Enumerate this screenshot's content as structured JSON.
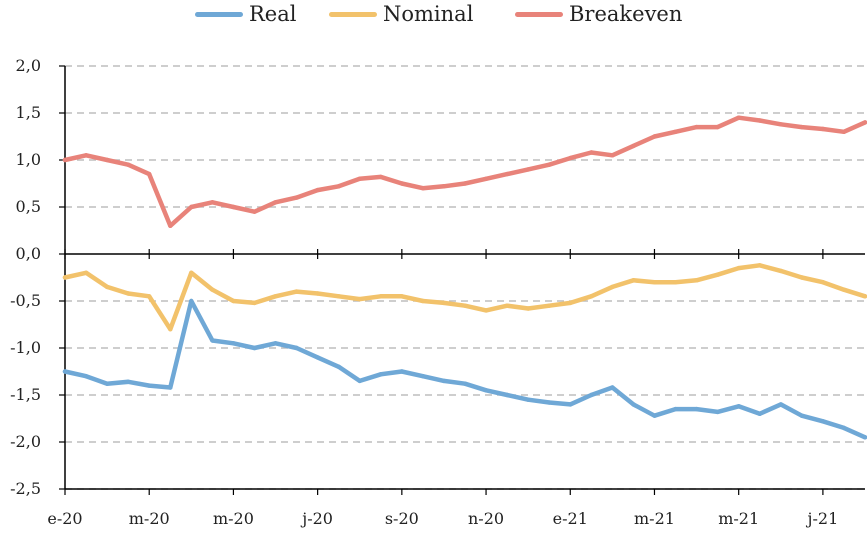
{
  "chart_data": {
    "type": "line",
    "title": "",
    "xlabel": "",
    "ylabel": "",
    "ylim": [
      -2.5,
      2.0
    ],
    "y_ticks": [
      "2,0",
      "1,5",
      "1,0",
      "0,5",
      "0,0",
      "-0,5",
      "-1,0",
      "-1,5",
      "-2,0",
      "-2,5"
    ],
    "x_ticks": [
      "e-20",
      "m-20",
      "m-20",
      "j-20",
      "s-20",
      "n-20",
      "e-21",
      "m-21",
      "m-21",
      "j-21"
    ],
    "x_range": [
      0,
      19
    ],
    "grid": "horizontal dashed",
    "legend_position": "top",
    "series": [
      {
        "name": "Real",
        "color": "#6fa8d6",
        "x": [
          0,
          0.5,
          1,
          1.5,
          2,
          2.5,
          3,
          3.5,
          4,
          4.5,
          5,
          5.5,
          6,
          6.5,
          7,
          7.5,
          8,
          8.5,
          9,
          9.5,
          10,
          10.5,
          11,
          11.5,
          12,
          12.5,
          13,
          13.5,
          14,
          14.5,
          15,
          15.5,
          16,
          16.5,
          17,
          17.5,
          18,
          18.5,
          19
        ],
        "values": [
          -1.25,
          -1.3,
          -1.38,
          -1.36,
          -1.4,
          -1.42,
          -0.5,
          -0.92,
          -0.95,
          -1.0,
          -0.95,
          -1.0,
          -1.1,
          -1.2,
          -1.35,
          -1.28,
          -1.25,
          -1.3,
          -1.35,
          -1.38,
          -1.45,
          -1.5,
          -1.55,
          -1.58,
          -1.6,
          -1.5,
          -1.42,
          -1.6,
          -1.72,
          -1.65,
          -1.65,
          -1.68,
          -1.62,
          -1.7,
          -1.6,
          -1.72,
          -1.78,
          -1.85,
          -1.95
        ]
      },
      {
        "name": "Nominal",
        "color": "#f2c26b",
        "x": [
          0,
          0.5,
          1,
          1.5,
          2,
          2.5,
          3,
          3.5,
          4,
          4.5,
          5,
          5.5,
          6,
          6.5,
          7,
          7.5,
          8,
          8.5,
          9,
          9.5,
          10,
          10.5,
          11,
          11.5,
          12,
          12.5,
          13,
          13.5,
          14,
          14.5,
          15,
          15.5,
          16,
          16.5,
          17,
          17.5,
          18,
          18.5,
          19
        ],
        "values": [
          -0.25,
          -0.2,
          -0.35,
          -0.42,
          -0.45,
          -0.8,
          -0.2,
          -0.38,
          -0.5,
          -0.52,
          -0.45,
          -0.4,
          -0.42,
          -0.45,
          -0.48,
          -0.45,
          -0.45,
          -0.5,
          -0.52,
          -0.55,
          -0.6,
          -0.55,
          -0.58,
          -0.55,
          -0.52,
          -0.45,
          -0.35,
          -0.28,
          -0.3,
          -0.3,
          -0.28,
          -0.22,
          -0.15,
          -0.12,
          -0.18,
          -0.25,
          -0.3,
          -0.38,
          -0.45
        ]
      },
      {
        "name": "Breakeven",
        "color": "#e8837a",
        "x": [
          0,
          0.5,
          1,
          1.5,
          2,
          2.5,
          3,
          3.5,
          4,
          4.5,
          5,
          5.5,
          6,
          6.5,
          7,
          7.5,
          8,
          8.5,
          9,
          9.5,
          10,
          10.5,
          11,
          11.5,
          12,
          12.5,
          13,
          13.5,
          14,
          14.5,
          15,
          15.5,
          16,
          16.5,
          17,
          17.5,
          18,
          18.5,
          19
        ],
        "values": [
          1.0,
          1.05,
          1.0,
          0.95,
          0.85,
          0.3,
          0.5,
          0.55,
          0.5,
          0.45,
          0.55,
          0.6,
          0.68,
          0.72,
          0.8,
          0.82,
          0.75,
          0.7,
          0.72,
          0.75,
          0.8,
          0.85,
          0.9,
          0.95,
          1.02,
          1.08,
          1.05,
          1.15,
          1.25,
          1.3,
          1.35,
          1.35,
          1.45,
          1.42,
          1.38,
          1.35,
          1.33,
          1.3,
          1.4
        ]
      }
    ]
  }
}
